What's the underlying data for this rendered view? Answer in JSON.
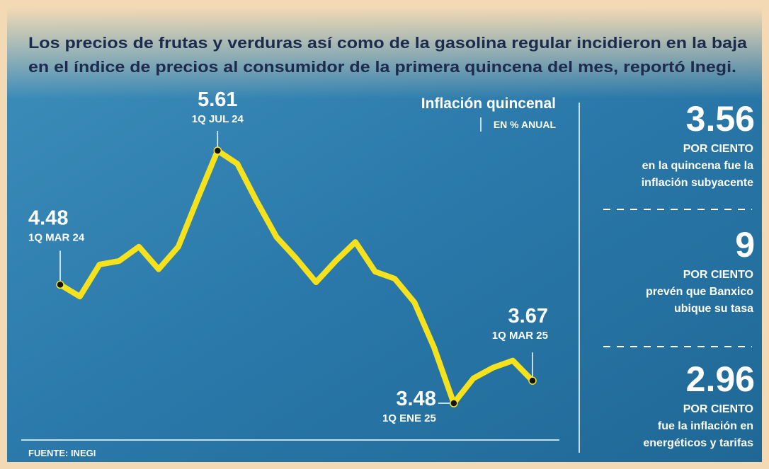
{
  "chart_data": {
    "type": "line",
    "title": [
      "Los precios de frutas y verduras así como de la gasolina regular incidieron en la baja",
      "en el índice de precios al consumidor de la primera quincena del mes, reportó Inegi."
    ],
    "chart_title": "Inflación quincenal",
    "subtitle": "EN % ANUAL",
    "source": "FUENTE: INEGI",
    "categories": [
      "1Q MAR 24",
      null,
      null,
      null,
      null,
      null,
      null,
      null,
      "1Q JUL 24",
      null,
      null,
      null,
      null,
      null,
      null,
      null,
      null,
      null,
      null,
      null,
      "1Q ENE 25",
      null,
      null,
      null,
      "1Q MAR 25"
    ],
    "values": [
      4.48,
      4.38,
      4.65,
      4.68,
      4.8,
      4.61,
      4.8,
      5.21,
      5.61,
      5.5,
      5.18,
      4.88,
      4.7,
      4.5,
      4.68,
      4.84,
      4.59,
      4.53,
      4.33,
      3.95,
      3.48,
      3.69,
      3.78,
      3.84,
      3.67
    ],
    "color": "#f6e21c"
  },
  "stats": [
    {
      "value": 3.56,
      "unit": "POR CIENTO",
      "text": [
        "en la quincena fue la",
        "inflación subyacente"
      ]
    },
    {
      "value": 9,
      "unit": "POR CIENTO",
      "text": [
        "prevén que Banxico",
        "ubique su tasa"
      ]
    },
    {
      "value": 2.96,
      "unit": "POR CIENTO",
      "text": [
        "fue la inflación en",
        "energéticos y tarifas"
      ]
    }
  ]
}
